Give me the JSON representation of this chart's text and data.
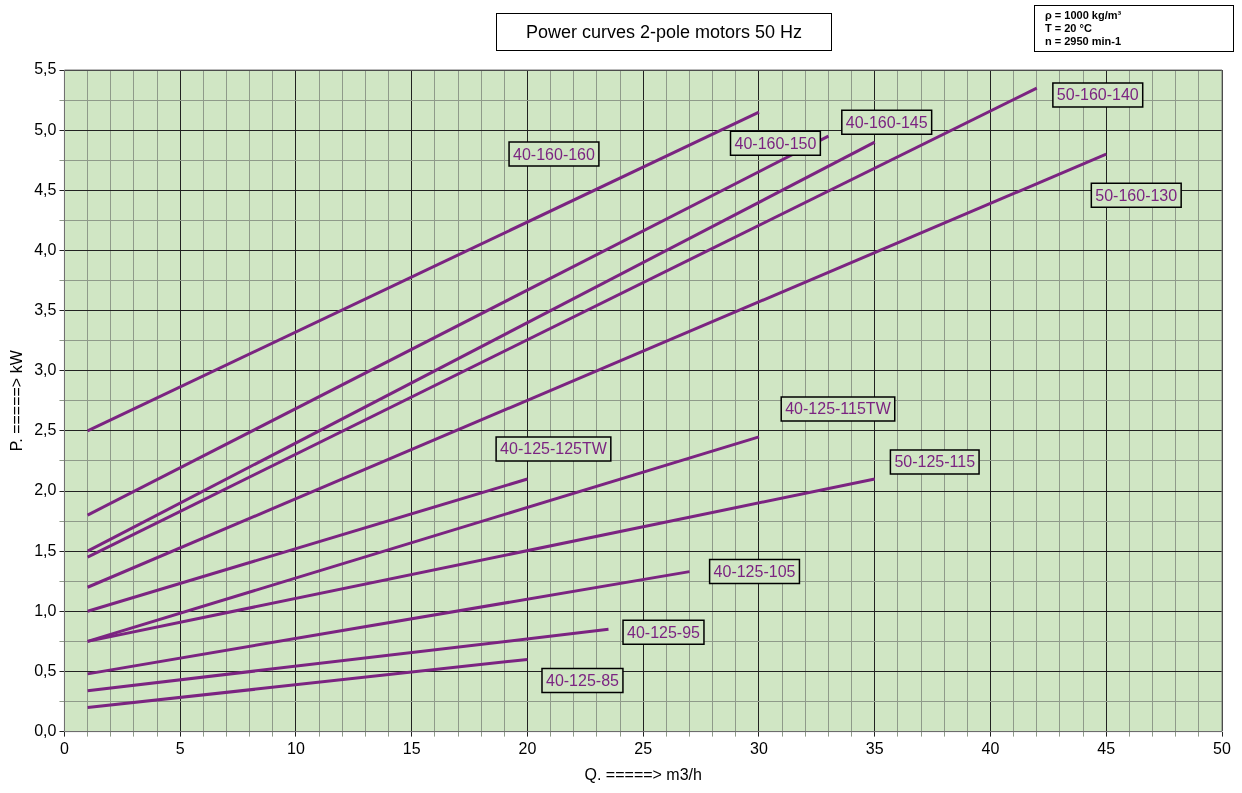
{
  "chart_data": {
    "type": "line",
    "title": "Power curves 2-pole motors 50 Hz",
    "annotations": [
      "ρ = 1000 kg/m³\nT = 20 °C\nn = 2950 min-1"
    ],
    "xlabel": "Q. =====> m3/h",
    "ylabel": "P. =====> kW",
    "xlim": [
      0,
      50
    ],
    "ylim": [
      0,
      5.5
    ],
    "xticks": [
      0,
      {
        "value": 1,
        "label": null
      },
      {
        "value": 2,
        "label": null
      },
      {
        "value": 3,
        "label": null
      },
      {
        "value": 4,
        "label": null
      },
      5,
      {
        "value": 6,
        "label": null
      },
      {
        "value": 7,
        "label": null
      },
      {
        "value": 8,
        "label": null
      },
      {
        "value": 9,
        "label": null
      },
      10,
      {
        "value": 11,
        "label": null
      },
      {
        "value": 12,
        "label": null
      },
      {
        "value": 13,
        "label": null
      },
      {
        "value": 14,
        "label": null
      },
      15,
      {
        "value": 16,
        "label": null
      },
      {
        "value": 17,
        "label": null
      },
      {
        "value": 18,
        "label": null
      },
      {
        "value": 19,
        "label": null
      },
      20,
      {
        "value": 21,
        "label": null
      },
      {
        "value": 22,
        "label": null
      },
      {
        "value": 23,
        "label": null
      },
      {
        "value": 24,
        "label": null
      },
      25,
      {
        "value": 26,
        "label": null
      },
      {
        "value": 27,
        "label": null
      },
      {
        "value": 28,
        "label": null
      },
      {
        "value": 29,
        "label": null
      },
      30,
      {
        "value": 31,
        "label": null
      },
      {
        "value": 32,
        "label": null
      },
      {
        "value": 33,
        "label": null
      },
      {
        "value": 34,
        "label": null
      },
      35,
      {
        "value": 36,
        "label": null
      },
      {
        "value": 37,
        "label": null
      },
      {
        "value": 38,
        "label": null
      },
      {
        "value": 39,
        "label": null
      },
      40,
      {
        "value": 41,
        "label": null
      },
      {
        "value": 42,
        "label": null
      },
      {
        "value": 43,
        "label": null
      },
      {
        "value": 44,
        "label": null
      },
      45,
      {
        "value": 46,
        "label": null
      },
      {
        "value": 47,
        "label": null
      },
      {
        "value": 48,
        "label": null
      },
      {
        "value": 49,
        "label": null
      },
      50
    ],
    "yticks": [
      {
        "value": 0,
        "label": "0,0"
      },
      {
        "value": 0.25,
        "label": null
      },
      {
        "value": 0.5,
        "label": "0,5"
      },
      {
        "value": 0.75,
        "label": null
      },
      {
        "value": 1,
        "label": "1,0"
      },
      {
        "value": 1.25,
        "label": null
      },
      {
        "value": 1.5,
        "label": "1,5"
      },
      {
        "value": 1.75,
        "label": null
      },
      {
        "value": 2,
        "label": "2,0"
      },
      {
        "value": 2.25,
        "label": null
      },
      {
        "value": 2.5,
        "label": "2,5"
      },
      {
        "value": 2.75,
        "label": null
      },
      {
        "value": 3,
        "label": "3,0"
      },
      {
        "value": 3.25,
        "label": null
      },
      {
        "value": 3.5,
        "label": "3,5"
      },
      {
        "value": 3.75,
        "label": null
      },
      {
        "value": 4,
        "label": "4,0"
      },
      {
        "value": 4.25,
        "label": null
      },
      {
        "value": 4.5,
        "label": "4,5"
      },
      {
        "value": 4.75,
        "label": null
      },
      {
        "value": 5,
        "label": "5,0"
      },
      {
        "value": 5.25,
        "label": null
      },
      {
        "value": 5.5,
        "label": "5,5"
      }
    ],
    "grid": true,
    "legend": false,
    "marker": "none",
    "line_style": "solid",
    "series": [
      {
        "name": "40-160-160",
        "color": "#7b2481",
        "x": [
          1,
          30
        ],
        "values": [
          2.5,
          5.15
        ]
      },
      {
        "name": "40-160-150",
        "color": "#7b2481",
        "x": [
          1,
          33
        ],
        "values": [
          1.8,
          4.95
        ]
      },
      {
        "name": "40-160-145",
        "color": "#7b2481",
        "x": [
          1,
          35
        ],
        "values": [
          1.5,
          4.9
        ]
      },
      {
        "name": "50-160-140",
        "color": "#7b2481",
        "x": [
          1,
          42
        ],
        "values": [
          1.45,
          5.35
        ]
      },
      {
        "name": "50-160-130",
        "color": "#7b2481",
        "x": [
          1,
          45
        ],
        "values": [
          1.2,
          4.8
        ]
      },
      {
        "name": "40-125-125TW",
        "color": "#7b2481",
        "x": [
          1,
          20
        ],
        "values": [
          1.0,
          2.1
        ]
      },
      {
        "name": "40-125-115TW",
        "color": "#7b2481",
        "x": [
          1,
          30
        ],
        "values": [
          0.75,
          2.45
        ]
      },
      {
        "name": "50-125-115",
        "color": "#7b2481",
        "x": [
          1,
          35
        ],
        "values": [
          0.75,
          2.1
        ]
      },
      {
        "name": "40-125-105",
        "color": "#7b2481",
        "x": [
          1,
          27
        ],
        "values": [
          0.48,
          1.33
        ]
      },
      {
        "name": "40-125-95",
        "color": "#7b2481",
        "x": [
          1,
          23.5
        ],
        "values": [
          0.34,
          0.85
        ]
      },
      {
        "name": "40-125-85",
        "color": "#7b2481",
        "x": [
          1,
          20
        ],
        "values": [
          0.2,
          0.6
        ]
      }
    ]
  }
}
